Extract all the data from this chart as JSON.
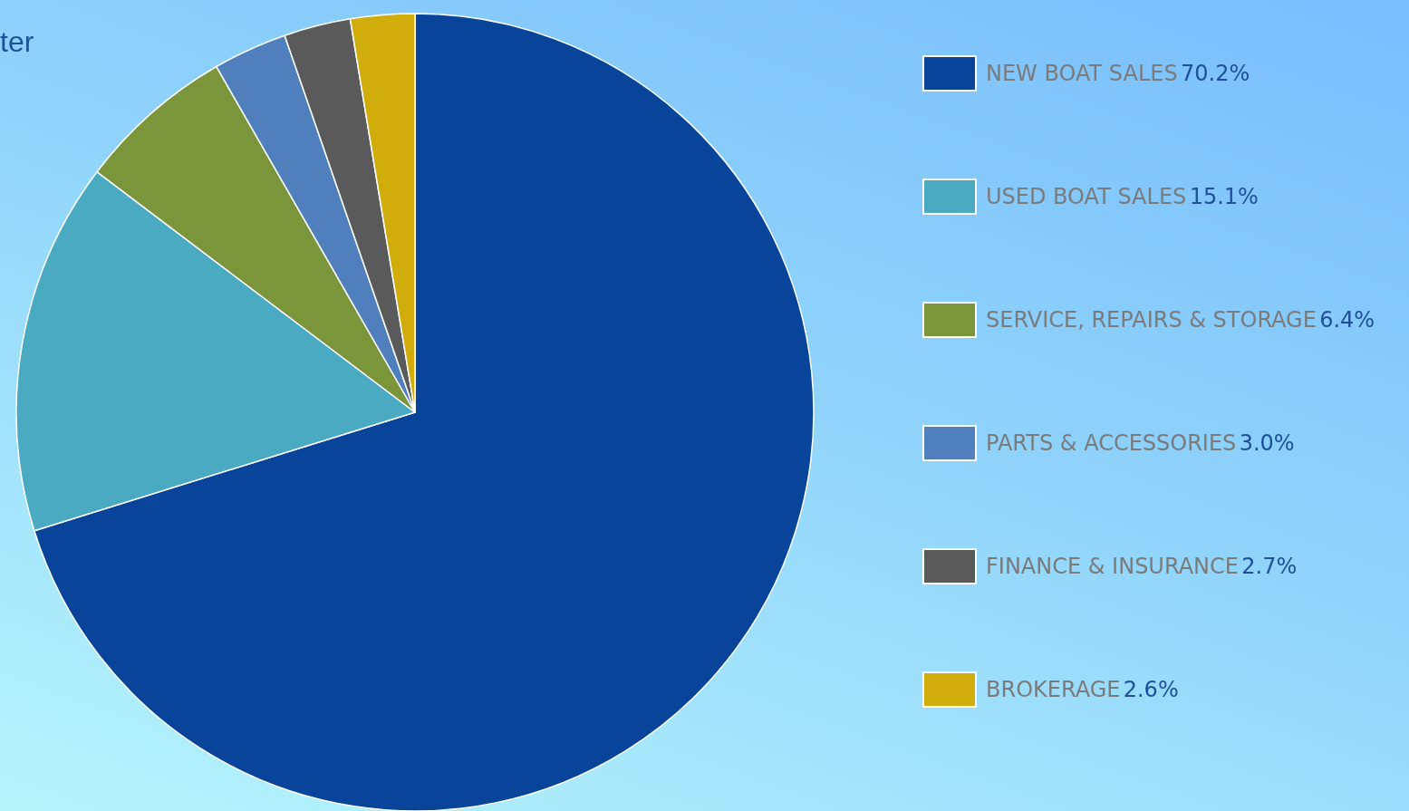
{
  "chart_data": {
    "type": "pie",
    "categories": [
      "NEW BOAT SALES",
      "USED BOAT SALES",
      "SERVICE, REPAIRS & STORAGE",
      "PARTS & ACCESSORIES",
      "FINANCE & INSURANCE",
      "BROKERAGE"
    ],
    "values": [
      70.2,
      15.1,
      6.4,
      3.0,
      2.7,
      2.6
    ],
    "colors": [
      "#08459a",
      "#4aaac2",
      "#7a953a",
      "#4f80bd",
      "#5a5a5a",
      "#d1ad0c"
    ],
    "legend": "right",
    "value_labels": [
      "70.2%",
      "15.1%",
      "6.4%",
      "3.0%",
      "2.7%",
      "2.6%"
    ],
    "annotations": [
      "ter"
    ]
  }
}
